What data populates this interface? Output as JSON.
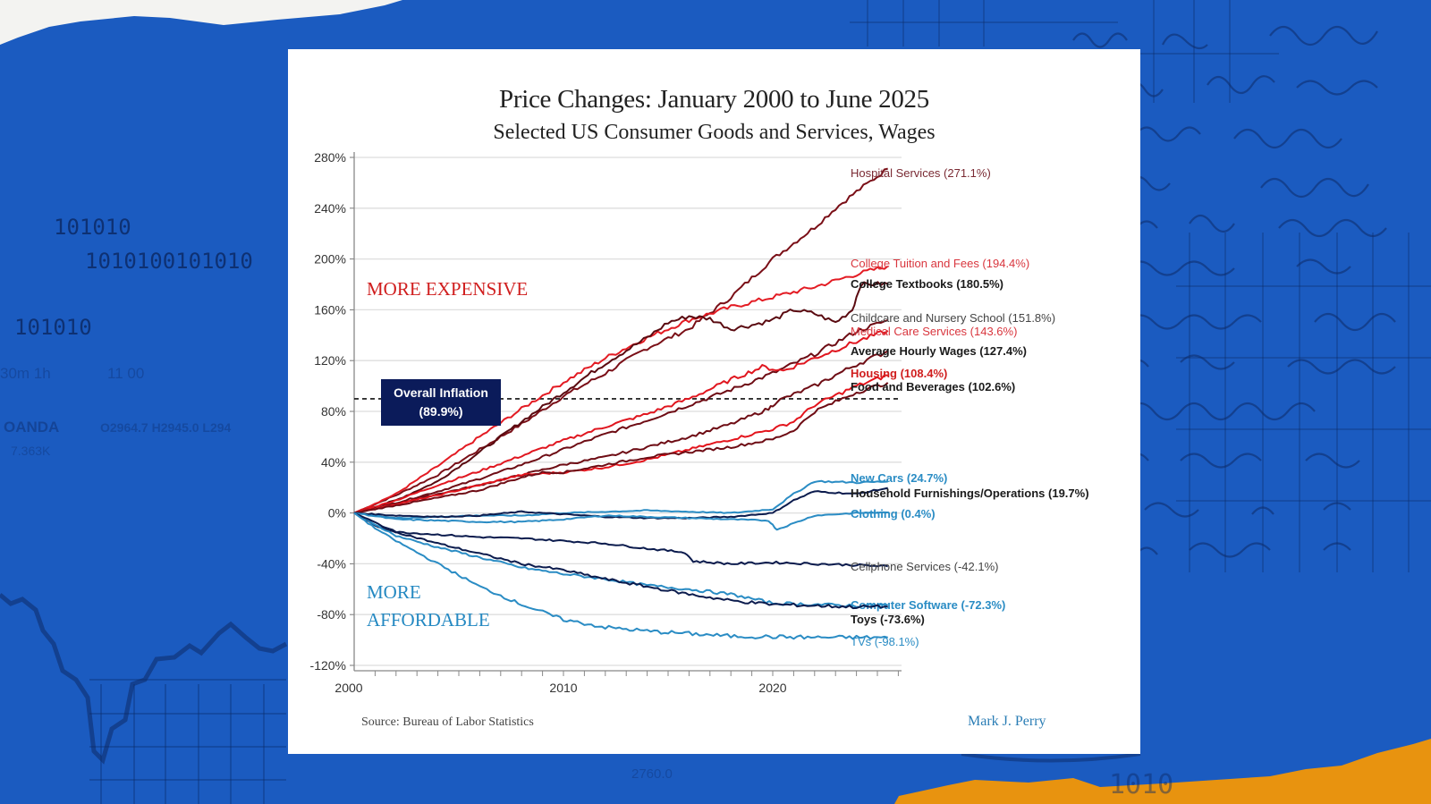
{
  "background": {
    "binary_lines": [
      "101010",
      "1010100101010",
      "101010"
    ],
    "ticker_labels": [
      "30m  1h",
      "11 00",
      "OANDA",
      "O2964.7  H2945.0  L294",
      "7.363K"
    ],
    "bottom_numbers": [
      "2760.0",
      "1010"
    ],
    "colors": {
      "paper_blue": "#1b5bc0",
      "torn_white": "#f3f3f1",
      "torn_orange": "#e8930f",
      "ink": "#0c2a66"
    }
  },
  "card": {
    "title": "Price Changes: January 2000 to June 2025",
    "subtitle": "Selected US Consumer Goods and Services, Wages",
    "source": "Source: Bureau of Labor Statistics",
    "author": "Mark J. Perry",
    "region_labels": {
      "expensive": "MORE EXPENSIVE",
      "affordable_line1": "MORE",
      "affordable_line2": "AFFORDABLE"
    },
    "callout": {
      "line1": "Overall Inflation",
      "line2": "(89.9%)"
    }
  },
  "chart_data": {
    "type": "line",
    "title": "Price Changes: January 2000 to June 2025",
    "subtitle": "Selected US Consumer Goods and Services, Wages",
    "xlabel": "",
    "ylabel": "",
    "xlim": [
      2000,
      2026
    ],
    "ylim": [
      -120,
      280
    ],
    "x_ticks": [
      2000,
      2010,
      2020
    ],
    "y_ticks": [
      -120,
      -80,
      -40,
      0,
      40,
      80,
      120,
      160,
      200,
      240,
      280
    ],
    "y_tick_labels": [
      "-120%",
      "-80%",
      "-40%",
      "0%",
      "40%",
      "80%",
      "120%",
      "160%",
      "200%",
      "240%",
      "280%"
    ],
    "grid": "horizontal",
    "reference_line": {
      "name": "Overall Inflation",
      "value": 89.9,
      "label": "Overall Inflation (89.9%)",
      "style": "dashed"
    },
    "series": [
      {
        "name": "Hospital Services",
        "label": "Hospital Services (271.1%)",
        "final": 271.1,
        "color": "#7a0f17",
        "label_color": "#7a2a33",
        "bold": false,
        "x": [
          2000,
          2002,
          2004,
          2006,
          2008,
          2010,
          2012,
          2014,
          2016,
          2018,
          2020,
          2022,
          2023,
          2024,
          2025.5
        ],
        "y": [
          0,
          14,
          30,
          50,
          70,
          92,
          110,
          130,
          145,
          170,
          200,
          225,
          240,
          253,
          271.1
        ]
      },
      {
        "name": "College Tuition and Fees",
        "label": "College Tuition and Fees (194.4%)",
        "final": 194.4,
        "color": "#e31b23",
        "label_color": "#d9363e",
        "bold": false,
        "x": [
          2000,
          2002,
          2004,
          2006,
          2008,
          2010,
          2012,
          2014,
          2016,
          2018,
          2020,
          2022,
          2024,
          2025.5
        ],
        "y": [
          0,
          15,
          37,
          60,
          82,
          103,
          122,
          138,
          152,
          162,
          170,
          178,
          188,
          194.4
        ]
      },
      {
        "name": "College Textbooks",
        "label": "College Textbooks (180.5%)",
        "final": 180.5,
        "color": "#5a0a10",
        "label_color": "#1a1a1a",
        "bold": true,
        "x": [
          2000,
          2002,
          2004,
          2006,
          2008,
          2010,
          2012,
          2014,
          2015,
          2016,
          2017,
          2018,
          2019,
          2020,
          2021,
          2022,
          2023,
          2023.8,
          2024.2,
          2025.5
        ],
        "y": [
          0,
          10,
          25,
          48,
          72,
          95,
          118,
          138,
          150,
          155,
          153,
          145,
          148,
          152,
          160,
          157,
          150,
          160,
          180,
          180.5
        ]
      },
      {
        "name": "Childcare and Nursery School",
        "label": "Childcare and Nursery School (151.8%)",
        "final": 151.8,
        "color": "#6e0c14",
        "label_color": "#444",
        "bold": false,
        "x": [
          2000,
          2002,
          2004,
          2006,
          2008,
          2010,
          2012,
          2014,
          2016,
          2018,
          2020,
          2022,
          2024,
          2025.5
        ],
        "y": [
          0,
          8,
          17,
          27,
          38,
          50,
          62,
          73,
          85,
          97,
          110,
          125,
          143,
          151.8
        ]
      },
      {
        "name": "Medical Care Services",
        "label": "Medical Care Services (143.6%)",
        "final": 143.6,
        "color": "#e0161f",
        "label_color": "#d9363e",
        "bold": false,
        "x": [
          2000,
          2002,
          2004,
          2006,
          2008,
          2010,
          2012,
          2014,
          2016,
          2018,
          2019.5,
          2020.5,
          2022,
          2024,
          2025.5
        ],
        "y": [
          0,
          10,
          22,
          33,
          45,
          57,
          68,
          78,
          90,
          105,
          115,
          112,
          122,
          135,
          143.6
        ]
      },
      {
        "name": "Average Hourly Wages",
        "label": "Average Hourly Wages (127.4%)",
        "final": 127.4,
        "color": "#6e0c14",
        "label_color": "#1a1a1a",
        "bold": true,
        "x": [
          2000,
          2002,
          2004,
          2006,
          2008,
          2010,
          2012,
          2014,
          2016,
          2018,
          2019.8,
          2020.2,
          2022,
          2024,
          2025.5
        ],
        "y": [
          0,
          7,
          15,
          22,
          30,
          38,
          44,
          52,
          60,
          70,
          82,
          88,
          100,
          117,
          127.4
        ]
      },
      {
        "name": "Housing",
        "label": "Housing (108.4%)",
        "final": 108.4,
        "color": "#e3141c",
        "label_color": "#d01e1e",
        "bold": true,
        "x": [
          2000,
          2002,
          2004,
          2006,
          2008,
          2010,
          2012,
          2014,
          2016,
          2018,
          2020,
          2021,
          2022,
          2024,
          2025.5
        ],
        "y": [
          0,
          7,
          14,
          22,
          30,
          32,
          36,
          42,
          50,
          58,
          66,
          72,
          85,
          100,
          108.4
        ]
      },
      {
        "name": "Food and Beverages",
        "label": "Food and Beverages (102.6%)",
        "final": 102.6,
        "color": "#6e0c14",
        "label_color": "#1a1a1a",
        "bold": true,
        "x": [
          2000,
          2002,
          2004,
          2006,
          2008,
          2009,
          2010,
          2012,
          2014,
          2016,
          2018,
          2020,
          2021,
          2022,
          2024,
          2025.5
        ],
        "y": [
          0,
          6,
          12,
          18,
          28,
          32,
          32,
          38,
          44,
          48,
          52,
          58,
          65,
          80,
          95,
          102.6
        ]
      },
      {
        "name": "New Cars",
        "label": "New Cars (24.7%)",
        "final": 24.7,
        "color": "#2a8cc4",
        "label_color": "#2a8cc4",
        "bold": true,
        "x": [
          2000,
          2002,
          2004,
          2006,
          2008,
          2010,
          2012,
          2014,
          2016,
          2018,
          2020,
          2021,
          2022,
          2024,
          2025.5
        ],
        "y": [
          0,
          -4,
          -3,
          -2,
          -2,
          0,
          1,
          2,
          1,
          0,
          3,
          15,
          25,
          24,
          24.7
        ]
      },
      {
        "name": "Household Furnishings/Operations",
        "label": "Household Furnishings/Operations (19.7%)",
        "final": 19.7,
        "color": "#0b1b4d",
        "label_color": "#1a1a1a",
        "bold": true,
        "x": [
          2000,
          2002,
          2004,
          2006,
          2008,
          2010,
          2012,
          2014,
          2016,
          2018,
          2020,
          2021,
          2022,
          2024,
          2025.5
        ],
        "y": [
          0,
          -2,
          -3,
          -2,
          1,
          -1,
          -3,
          -4,
          -4,
          -3,
          0,
          10,
          17,
          15,
          19.7
        ]
      },
      {
        "name": "Clothing",
        "label": "Clothing (0.4%)",
        "final": 0.4,
        "color": "#2a8cc4",
        "label_color": "#2a8cc4",
        "bold": true,
        "x": [
          2000,
          2002,
          2004,
          2006,
          2008,
          2010,
          2012,
          2014,
          2016,
          2018,
          2019.8,
          2020.2,
          2022,
          2024,
          2025.5
        ],
        "y": [
          0,
          -5,
          -6,
          -7,
          -7,
          -5,
          -2,
          -3,
          -4,
          -5,
          -6,
          -13,
          -2,
          0,
          0.4
        ]
      },
      {
        "name": "Cellphone Services",
        "label": "Cellphone Services (-42.1%)",
        "final": -42.1,
        "color": "#0b1b4d",
        "label_color": "#444",
        "bold": false,
        "x": [
          2000,
          2001,
          2002,
          2004,
          2006,
          2008,
          2010,
          2012,
          2014,
          2015.8,
          2016.2,
          2018,
          2020,
          2022,
          2024,
          2025.5
        ],
        "y": [
          0,
          -10,
          -15,
          -17,
          -19,
          -20,
          -22,
          -24,
          -28,
          -31,
          -38,
          -40,
          -39,
          -40,
          -41,
          -42.1
        ]
      },
      {
        "name": "Computer Software",
        "label": "Computer Software (-72.3%)",
        "final": -72.3,
        "color": "#2a8cc4",
        "label_color": "#2a8cc4",
        "bold": true,
        "x": [
          2000,
          2002,
          2004,
          2006,
          2008,
          2010,
          2012,
          2014,
          2016,
          2018,
          2020,
          2022,
          2024,
          2025.5
        ],
        "y": [
          0,
          -18,
          -27,
          -35,
          -43,
          -48,
          -52,
          -57,
          -60,
          -64,
          -71,
          -72,
          -73,
          -72.3
        ]
      },
      {
        "name": "Toys",
        "label": "Toys (-73.6%)",
        "final": -73.6,
        "color": "#0b1b4d",
        "label_color": "#1a1a1a",
        "bold": true,
        "x": [
          2000,
          2002,
          2004,
          2006,
          2008,
          2010,
          2012,
          2014,
          2016,
          2018,
          2020,
          2022,
          2024,
          2025.5
        ],
        "y": [
          0,
          -15,
          -24,
          -32,
          -40,
          -45,
          -52,
          -58,
          -64,
          -69,
          -72,
          -73,
          -74,
          -73.6
        ]
      },
      {
        "name": "TVs",
        "label": "TVs (-98.1%)",
        "final": -98.1,
        "color": "#2a8cc4",
        "label_color": "#2a8cc4",
        "bold": false,
        "x": [
          2000,
          2001,
          2002,
          2004,
          2006,
          2008,
          2010,
          2012,
          2014,
          2016,
          2018,
          2020,
          2022,
          2024,
          2025.5
        ],
        "y": [
          0,
          -12,
          -22,
          -40,
          -58,
          -72,
          -84,
          -90,
          -93,
          -95,
          -97,
          -97.5,
          -98,
          -98,
          -98.1
        ]
      }
    ]
  }
}
